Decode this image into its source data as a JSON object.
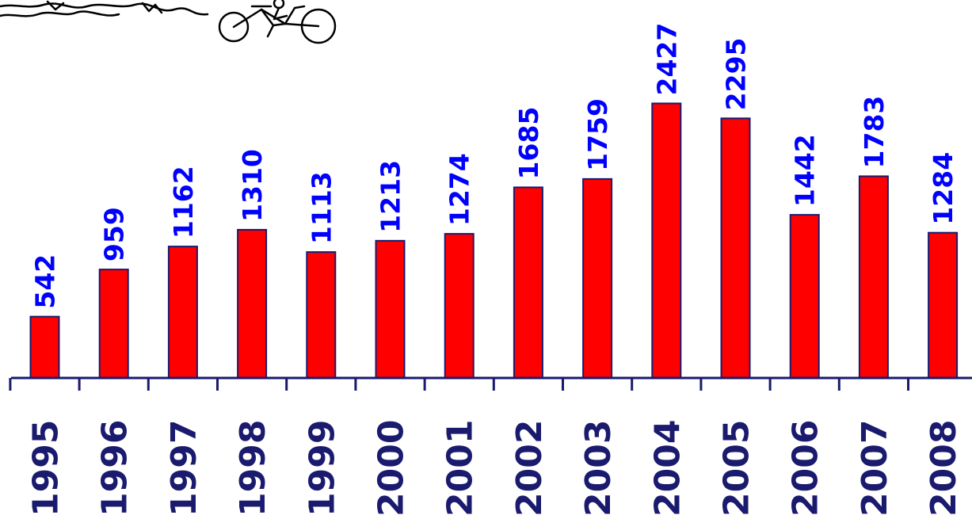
{
  "chart_data": {
    "type": "bar",
    "categories": [
      "1995",
      "1996",
      "1997",
      "1998",
      "1999",
      "2000",
      "2001",
      "2002",
      "2003",
      "2004",
      "2005",
      "2006",
      "2007",
      "2008"
    ],
    "values": [
      542,
      959,
      1162,
      1310,
      1113,
      1213,
      1274,
      1685,
      1759,
      2427,
      2295,
      1442,
      1783,
      1284
    ],
    "title": "",
    "xlabel": "",
    "ylabel": "",
    "ylim": [
      0,
      2500
    ],
    "grid": false,
    "legend": "none",
    "data_labels": true
  },
  "colors": {
    "bar_fill": "#ff0000",
    "bar_outline": "#1a1a6e",
    "value_label": "#0000ff",
    "axis": "#1a1a6e"
  },
  "decoration": {
    "icon": "cyclist-drawing-icon"
  }
}
